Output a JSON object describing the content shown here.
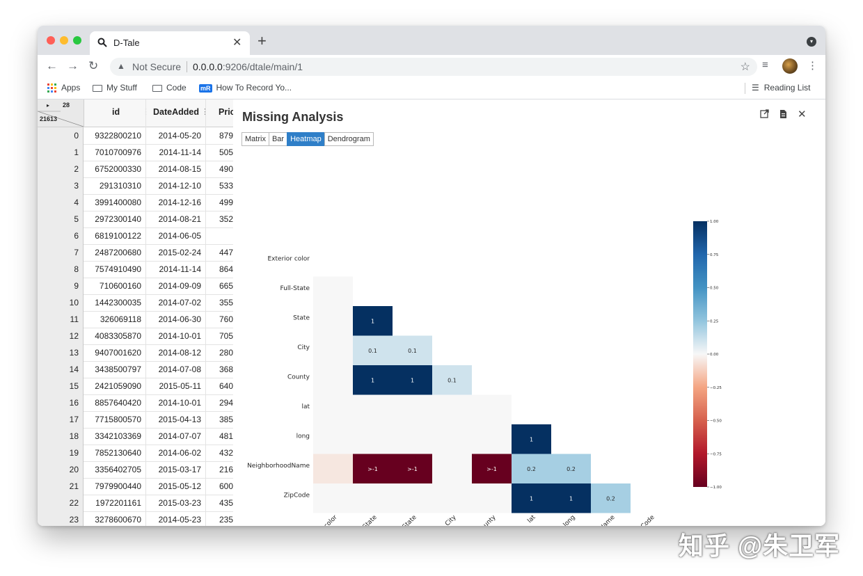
{
  "browser": {
    "tab_title": "D-Tale",
    "new_tab": "+",
    "close": "✕",
    "security": "Not Secure",
    "url_host": "0.0.0.0",
    "url_path": ":9206/dtale/main/1",
    "bookmarks": [
      "Apps",
      "My Stuff",
      "Code",
      "How To Record Yo..."
    ],
    "reading_list": "Reading List",
    "icons": [
      "back-arrow-icon",
      "forward-arrow-icon",
      "reload-icon",
      "warning-icon",
      "star-icon",
      "playlist-icon",
      "more-vert-icon"
    ]
  },
  "grid": {
    "corner_count": "28",
    "corner_rows": "21613",
    "corner_toggle": "▸",
    "columns": [
      "id",
      "DateAdded",
      "Pric"
    ],
    "rows": [
      {
        "index": "0",
        "id": "9322800210",
        "date": "2014-05-20",
        "price": "879"
      },
      {
        "index": "1",
        "id": "7010700976",
        "date": "2014-11-14",
        "price": "505"
      },
      {
        "index": "2",
        "id": "6752000330",
        "date": "2014-08-15",
        "price": "490"
      },
      {
        "index": "3",
        "id": "291310310",
        "date": "2014-12-10",
        "price": "533"
      },
      {
        "index": "4",
        "id": "3991400080",
        "date": "2014-12-16",
        "price": "499"
      },
      {
        "index": "5",
        "id": "2972300140",
        "date": "2014-08-21",
        "price": "352"
      },
      {
        "index": "6",
        "id": "6819100122",
        "date": "2014-06-05",
        "price": ""
      },
      {
        "index": "7",
        "id": "2487200680",
        "date": "2015-02-24",
        "price": "447"
      },
      {
        "index": "8",
        "id": "7574910490",
        "date": "2014-11-14",
        "price": "864"
      },
      {
        "index": "9",
        "id": "710600160",
        "date": "2014-09-09",
        "price": "665"
      },
      {
        "index": "10",
        "id": "1442300035",
        "date": "2014-07-02",
        "price": "355"
      },
      {
        "index": "11",
        "id": "326069118",
        "date": "2014-06-30",
        "price": "760"
      },
      {
        "index": "12",
        "id": "4083305870",
        "date": "2014-10-01",
        "price": "705"
      },
      {
        "index": "13",
        "id": "9407001620",
        "date": "2014-08-12",
        "price": "280"
      },
      {
        "index": "14",
        "id": "3438500797",
        "date": "2014-07-08",
        "price": "368"
      },
      {
        "index": "15",
        "id": "2421059090",
        "date": "2015-05-11",
        "price": "640"
      },
      {
        "index": "16",
        "id": "8857640420",
        "date": "2014-10-01",
        "price": "294"
      },
      {
        "index": "17",
        "id": "7715800570",
        "date": "2015-04-13",
        "price": "385"
      },
      {
        "index": "18",
        "id": "3342103369",
        "date": "2014-07-07",
        "price": "481"
      },
      {
        "index": "19",
        "id": "7852130640",
        "date": "2014-06-02",
        "price": "432"
      },
      {
        "index": "20",
        "id": "3356402705",
        "date": "2015-03-17",
        "price": "216"
      },
      {
        "index": "21",
        "id": "7979900440",
        "date": "2015-05-12",
        "price": "600"
      },
      {
        "index": "22",
        "id": "1972201161",
        "date": "2015-03-23",
        "price": "435"
      },
      {
        "index": "23",
        "id": "3278600670",
        "date": "2014-05-23",
        "price": "235"
      }
    ]
  },
  "popup": {
    "title": "Missing Analysis",
    "buttons": [
      "Matrix",
      "Bar",
      "Heatmap",
      "Dendrogram"
    ],
    "active_button": "Heatmap",
    "icons": [
      "open-new-window-icon",
      "export-file-icon",
      "close-icon"
    ],
    "close_glyph": "✕"
  },
  "chart_data": {
    "type": "heatmap",
    "variables": [
      "Exterior color",
      "Full-State",
      "State",
      "City",
      "County",
      "lat",
      "long",
      "NeighborhoodName",
      "ZipCode"
    ],
    "x_tick_labels": [
      "Exterior color",
      "Full-State",
      "State",
      "City",
      "County",
      "lat",
      "long",
      "NeighborhoodName",
      "ZipCode"
    ],
    "y_tick_labels": [
      "Exterior color",
      "Full-State",
      "State",
      "City",
      "County",
      "lat",
      "long",
      "NeighborhoodName",
      "ZipCode"
    ],
    "lower_triangle": true,
    "values": [
      [
        null,
        null,
        null,
        null,
        null,
        null,
        null,
        null,
        null
      ],
      [
        0,
        null,
        null,
        null,
        null,
        null,
        null,
        null,
        null
      ],
      [
        0,
        1,
        null,
        null,
        null,
        null,
        null,
        null,
        null
      ],
      [
        0,
        0.1,
        0.1,
        null,
        null,
        null,
        null,
        null,
        null
      ],
      [
        0,
        1,
        1,
        0.1,
        null,
        null,
        null,
        null,
        null
      ],
      [
        0,
        0,
        0,
        0,
        0,
        null,
        null,
        null,
        null
      ],
      [
        0,
        0,
        0,
        0,
        0,
        1,
        null,
        null,
        null
      ],
      [
        -0.05,
        -1,
        -1,
        0,
        -1,
        0.2,
        0.2,
        null,
        null
      ],
      [
        0,
        0,
        0,
        0,
        0,
        1,
        1,
        0.2,
        null
      ]
    ],
    "cell_labels": [
      [
        null,
        null,
        null,
        null,
        null,
        null,
        null,
        null,
        null
      ],
      [
        null,
        null,
        null,
        null,
        null,
        null,
        null,
        null,
        null
      ],
      [
        null,
        "1",
        null,
        null,
        null,
        null,
        null,
        null,
        null
      ],
      [
        null,
        "0.1",
        "0.1",
        null,
        null,
        null,
        null,
        null,
        null
      ],
      [
        null,
        "1",
        "1",
        "0.1",
        null,
        null,
        null,
        null,
        null
      ],
      [
        null,
        null,
        null,
        null,
        null,
        null,
        null,
        null,
        null
      ],
      [
        null,
        null,
        null,
        null,
        null,
        "1",
        null,
        null,
        null
      ],
      [
        null,
        ">-1",
        ">-1",
        null,
        ">-1",
        "0.2",
        "0.2",
        null,
        null
      ],
      [
        null,
        null,
        null,
        null,
        null,
        "1",
        "1",
        "0.2",
        null
      ]
    ],
    "colorbar": {
      "range": [
        -1,
        1
      ],
      "ticks": [
        "1.00",
        "0.75",
        "0.50",
        "0.25",
        "0.00",
        "−0.25",
        "−0.50",
        "−0.75",
        "−1.00"
      ],
      "colormap": "RdBu"
    }
  },
  "watermark": "知乎 @朱卫军"
}
